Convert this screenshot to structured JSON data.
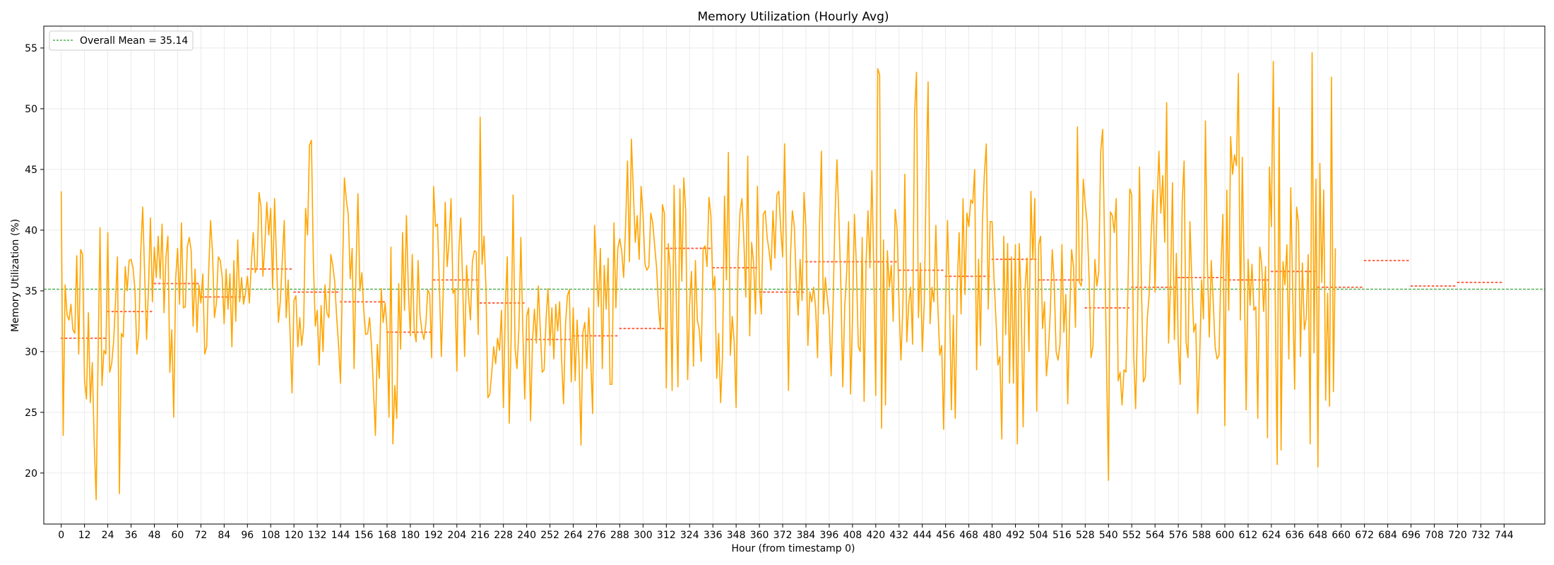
{
  "chart_data": {
    "type": "line",
    "title": "Memory Utilization (Hourly Avg)",
    "xlabel": "Hour (from timestamp 0)",
    "ylabel": "Memory Utilization (%)",
    "xlim": [
      -9,
      765
    ],
    "ylim": [
      15.8,
      56.8
    ],
    "x_ticks": [
      0,
      12,
      24,
      36,
      48,
      60,
      72,
      84,
      96,
      108,
      120,
      132,
      144,
      156,
      168,
      180,
      192,
      204,
      216,
      228,
      240,
      252,
      264,
      276,
      288,
      300,
      312,
      324,
      336,
      348,
      360,
      372,
      384,
      396,
      408,
      420,
      432,
      444,
      456,
      468,
      480,
      492,
      504,
      516,
      528,
      540,
      552,
      564,
      576,
      588,
      600,
      612,
      624,
      636,
      648,
      660,
      672,
      684,
      696,
      708,
      720,
      732,
      744
    ],
    "y_ticks": [
      20,
      25,
      30,
      35,
      40,
      45,
      50,
      55
    ],
    "grid": true,
    "colors": {
      "series": "#ffa500",
      "daily_mean": "#ff6347",
      "overall_mean": "#2ca02c",
      "axes": "#000000",
      "grid": "#e6e6e6"
    },
    "overall_mean": {
      "label": "Overall Mean = 35.14",
      "value": 35.14
    },
    "legend": {
      "location": "top-left",
      "entries": [
        "Overall Mean = 35.14"
      ]
    },
    "daily_means": [
      {
        "day": 1,
        "start": 0,
        "end": 23,
        "mean": 31.1
      },
      {
        "day": 2,
        "start": 24,
        "end": 47,
        "mean": 33.3
      },
      {
        "day": 3,
        "start": 48,
        "end": 71,
        "mean": 35.6
      },
      {
        "day": 4,
        "start": 72,
        "end": 95,
        "mean": 34.5
      },
      {
        "day": 5,
        "start": 96,
        "end": 119,
        "mean": 36.8
      },
      {
        "day": 6,
        "start": 120,
        "end": 143,
        "mean": 34.9
      },
      {
        "day": 7,
        "start": 144,
        "end": 167,
        "mean": 34.1
      },
      {
        "day": 8,
        "start": 168,
        "end": 191,
        "mean": 31.6
      },
      {
        "day": 9,
        "start": 192,
        "end": 215,
        "mean": 35.9
      },
      {
        "day": 10,
        "start": 216,
        "end": 239,
        "mean": 34.0
      },
      {
        "day": 11,
        "start": 240,
        "end": 263,
        "mean": 31.0
      },
      {
        "day": 12,
        "start": 264,
        "end": 287,
        "mean": 31.3
      },
      {
        "day": 13,
        "start": 288,
        "end": 311,
        "mean": 31.9
      },
      {
        "day": 14,
        "start": 312,
        "end": 335,
        "mean": 38.5
      },
      {
        "day": 15,
        "start": 336,
        "end": 359,
        "mean": 36.9
      },
      {
        "day": 16,
        "start": 360,
        "end": 383,
        "mean": 34.9
      },
      {
        "day": 17,
        "start": 384,
        "end": 407,
        "mean": 37.4
      },
      {
        "day": 18,
        "start": 408,
        "end": 431,
        "mean": 37.4
      },
      {
        "day": 19,
        "start": 432,
        "end": 455,
        "mean": 36.7
      },
      {
        "day": 20,
        "start": 456,
        "end": 479,
        "mean": 36.2
      },
      {
        "day": 21,
        "start": 480,
        "end": 503,
        "mean": 37.6
      },
      {
        "day": 22,
        "start": 504,
        "end": 527,
        "mean": 35.9
      },
      {
        "day": 23,
        "start": 528,
        "end": 551,
        "mean": 33.6
      },
      {
        "day": 24,
        "start": 552,
        "end": 575,
        "mean": 35.3
      },
      {
        "day": 25,
        "start": 576,
        "end": 599,
        "mean": 36.1
      },
      {
        "day": 26,
        "start": 600,
        "end": 623,
        "mean": 35.9
      },
      {
        "day": 27,
        "start": 624,
        "end": 647,
        "mean": 36.6
      },
      {
        "day": 28,
        "start": 648,
        "end": 671,
        "mean": 35.3
      },
      {
        "day": 29,
        "start": 672,
        "end": 695,
        "mean": 37.5
      },
      {
        "day": 30,
        "start": 696,
        "end": 719,
        "mean": 35.4
      },
      {
        "day": 31,
        "start": 720,
        "end": 744,
        "mean": 35.7
      }
    ],
    "series": [
      {
        "name": "Memory Utilization",
        "x_start": 0,
        "x_step": 1,
        "values": [
          43.2,
          23.1,
          35.5,
          33.0,
          32.6,
          33.9,
          31.8,
          31.5,
          37.9,
          29.8,
          38.4,
          38.0,
          27.6,
          26.1,
          33.2,
          25.8,
          29.1,
          22.5,
          17.8,
          29.6,
          40.2,
          27.2,
          30.1,
          29.8,
          39.8,
          28.3,
          29.0,
          30.8,
          34.2,
          37.8,
          18.3,
          31.5,
          31.2,
          37.0,
          35.0,
          37.5,
          37.6,
          36.9,
          35.1,
          29.8,
          31.5,
          38.2,
          41.9,
          36.4,
          31.0,
          35.3,
          41.0,
          34.1,
          38.6,
          36.1,
          39.5,
          36.0,
          40.5,
          33.2,
          37.8,
          39.5,
          28.3,
          31.8,
          24.6,
          36.0,
          38.5,
          33.9,
          40.6,
          33.6,
          33.7,
          38.6,
          39.4,
          38.3,
          32.1,
          36.8,
          31.6,
          35.5,
          34.0,
          36.4,
          29.8,
          30.4,
          36.5,
          40.8,
          38.1,
          32.8,
          34.0,
          37.8,
          37.5,
          36.1,
          32.3,
          36.8,
          33.5,
          36.4,
          30.4,
          37.5,
          32.5,
          39.2,
          34.1,
          36.1,
          33.9,
          34.8,
          36.2,
          34.0,
          37.2,
          39.8,
          36.5,
          37.0,
          43.1,
          41.9,
          36.2,
          38.8,
          42.3,
          39.6,
          41.8,
          35.2,
          42.6,
          37.5,
          32.4,
          34.2,
          37.6,
          40.8,
          32.8,
          35.9,
          31.5,
          26.6,
          34.2,
          34.6,
          30.4,
          32.8,
          30.5,
          32.1,
          41.8,
          39.6,
          47.0,
          47.4,
          37.5,
          32.1,
          33.4,
          28.9,
          33.8,
          30.0,
          35.5,
          33.2,
          32.8,
          38.0,
          37.1,
          35.8,
          32.9,
          30.5,
          27.4,
          36.0,
          44.3,
          42.5,
          41.3,
          36.0,
          38.5,
          28.6,
          36.8,
          43.0,
          35.0,
          36.5,
          33.4,
          31.4,
          31.5,
          32.8,
          30.4,
          26.9,
          23.1,
          30.6,
          27.8,
          35.2,
          32.4,
          34.0,
          31.8,
          24.6,
          38.6,
          22.4,
          27.2,
          24.5,
          35.6,
          30.2,
          39.8,
          33.4,
          41.2,
          35.0,
          31.3,
          38.0,
          31.8,
          30.8,
          37.5,
          33.0,
          31.7,
          31.0,
          32.3,
          35.1,
          34.7,
          29.5,
          43.6,
          40.3,
          40.5,
          35.4,
          29.6,
          35.1,
          42.3,
          37.0,
          39.1,
          42.6,
          34.8,
          35.2,
          28.4,
          38.2,
          41.0,
          35.5,
          29.6,
          37.1,
          34.6,
          32.6,
          37.4,
          38.3,
          38.2,
          31.4,
          49.3,
          37.2,
          39.5,
          35.3,
          26.2,
          26.5,
          28.3,
          30.4,
          29.0,
          31.1,
          30.1,
          33.4,
          25.4,
          33.7,
          37.8,
          24.1,
          31.2,
          42.9,
          30.3,
          28.6,
          31.9,
          39.4,
          31.8,
          26.1,
          32.9,
          33.6,
          24.3,
          30.9,
          33.5,
          30.7,
          35.4,
          31.9,
          28.3,
          28.5,
          32.7,
          35.2,
          30.5,
          33.6,
          29.4,
          33.9,
          31.7,
          34.1,
          29.4,
          25.7,
          32.2,
          34.6,
          35.1,
          27.5,
          33.6,
          27.6,
          32.6,
          29.3,
          22.3,
          31.6,
          32.4,
          28.6,
          33.6,
          29.5,
          24.9,
          40.4,
          36.8,
          33.7,
          38.5,
          28.6,
          37.1,
          33.5,
          37.7,
          27.3,
          27.3,
          40.6,
          33.6,
          38.5,
          39.3,
          38.3,
          36.1,
          40.3,
          45.7,
          37.4,
          47.5,
          43.2,
          39.0,
          41.2,
          37.6,
          43.6,
          41.3,
          37.2,
          36.7,
          37.0,
          41.4,
          40.6,
          38.7,
          36.9,
          33.6,
          31.8,
          42.1,
          41.4,
          27.0,
          38.9,
          36.9,
          26.8,
          43.7,
          35.5,
          27.1,
          43.4,
          35.8,
          44.3,
          41.6,
          27.7,
          33.8,
          36.6,
          28.8,
          37.5,
          32.6,
          31.8,
          29.2,
          38.5,
          38.7,
          37.0,
          42.7,
          41.2,
          35.1,
          36.2,
          27.8,
          31.5,
          25.8,
          29.8,
          42.8,
          35.9,
          46.4,
          29.7,
          32.9,
          30.8,
          25.4,
          37.6,
          41.5,
          42.6,
          39.1,
          34.5,
          46.1,
          31.3,
          39.0,
          37.3,
          33.1,
          43.6,
          35.5,
          33.1,
          41.3,
          41.6,
          39.4,
          38.3,
          36.7,
          41.6,
          37.7,
          42.9,
          43.2,
          40.1,
          37.8,
          47.1,
          37.2,
          26.8,
          37.8,
          41.6,
          40.3,
          35.7,
          33.0,
          37.6,
          34.2,
          43.1,
          40.2,
          30.5,
          34.9,
          34.1,
          35.3,
          33.6,
          29.5,
          40.3,
          46.5,
          33.1,
          36.1,
          34.4,
          32.9,
          28.0,
          33.9,
          41.2,
          45.8,
          40.9,
          35.6,
          27.1,
          33.7,
          36.5,
          40.7,
          26.5,
          32.8,
          41.3,
          37.1,
          30.4,
          30.0,
          39.4,
          25.9,
          37.3,
          41.6,
          36.9,
          44.9,
          36.5,
          26.4,
          53.3,
          52.8,
          23.7,
          39.2,
          25.6,
          38.3,
          35.3,
          37.1,
          32.5,
          41.7,
          40.1,
          33.8,
          29.3,
          33.8,
          44.6,
          30.8,
          33.9,
          35.3,
          30.6,
          49.5,
          53.0,
          32.8,
          37.3,
          30.0,
          33.9,
          44.1,
          52.2,
          32.3,
          35.3,
          34.1,
          40.4,
          33.8,
          29.7,
          30.5,
          23.6,
          33.5,
          40.8,
          34.4,
          25.2,
          33.0,
          24.5,
          35.2,
          39.8,
          33.1,
          42.6,
          34.7,
          41.4,
          40.3,
          42.5,
          42.2,
          45.0,
          28.5,
          37.6,
          30.5,
          40.7,
          44.6,
          47.1,
          33.5,
          40.7,
          40.7,
          35.9,
          32.6,
          28.9,
          29.6,
          22.8,
          39.5,
          31.4,
          38.9,
          27.4,
          37.8,
          27.4,
          38.8,
          22.4,
          38.9,
          34.0,
          23.8,
          35.2,
          37.7,
          30.0,
          43.2,
          37.6,
          42.6,
          25.1,
          38.8,
          39.5,
          31.9,
          34.1,
          28.0,
          29.9,
          33.3,
          38.4,
          35.7,
          30.0,
          29.3,
          30.6,
          38.8,
          31.6,
          34.7,
          25.7,
          33.1,
          38.4,
          36.9,
          32.0,
          48.5,
          35.7,
          35.4,
          44.2,
          42.2,
          40.6,
          36.1,
          29.5,
          30.4,
          37.6,
          35.4,
          36.6,
          46.5,
          48.3,
          38.9,
          29.0,
          19.4,
          41.5,
          41.2,
          39.8,
          42.6,
          27.6,
          28.3,
          25.6,
          28.5,
          28.3,
          34.8,
          43.4,
          42.9,
          29.8,
          25.3,
          32.7,
          45.2,
          35.4,
          27.5,
          27.9,
          32.7,
          34.7,
          39.6,
          43.3,
          34.9,
          41.8,
          46.5,
          41.4,
          44.5,
          39.0,
          50.5,
          30.7,
          35.5,
          43.9,
          31.0,
          38.1,
          30.6,
          27.3,
          42.2,
          45.7,
          30.8,
          29.5,
          40.7,
          35.8,
          31.6,
          32.3,
          24.9,
          29.4,
          35.9,
          32.7,
          49.0,
          37.3,
          31.2,
          37.5,
          34.2,
          30.4,
          29.4,
          29.7,
          36.9,
          41.3,
          23.9,
          43.3,
          33.4,
          47.7,
          44.6,
          46.2,
          45.3,
          52.9,
          32.6,
          46.0,
          36.2,
          25.2,
          37.6,
          33.8,
          37.2,
          33.4,
          33.7,
          24.5,
          38.6,
          37.2,
          33.3,
          37.0,
          22.9,
          45.2,
          40.3,
          53.9,
          34.1,
          20.7,
          50.1,
          21.9,
          37.4,
          35.5,
          38.8,
          29.4,
          43.5,
          34.9,
          26.9,
          41.9,
          40.6,
          29.6,
          37.3,
          31.8,
          32.8,
          38.0,
          22.4,
          54.6,
          29.9,
          44.2,
          20.5,
          45.5,
          35.7,
          43.3,
          26.0,
          34.8,
          25.5,
          52.6,
          26.7,
          38.5
        ]
      }
    ]
  }
}
